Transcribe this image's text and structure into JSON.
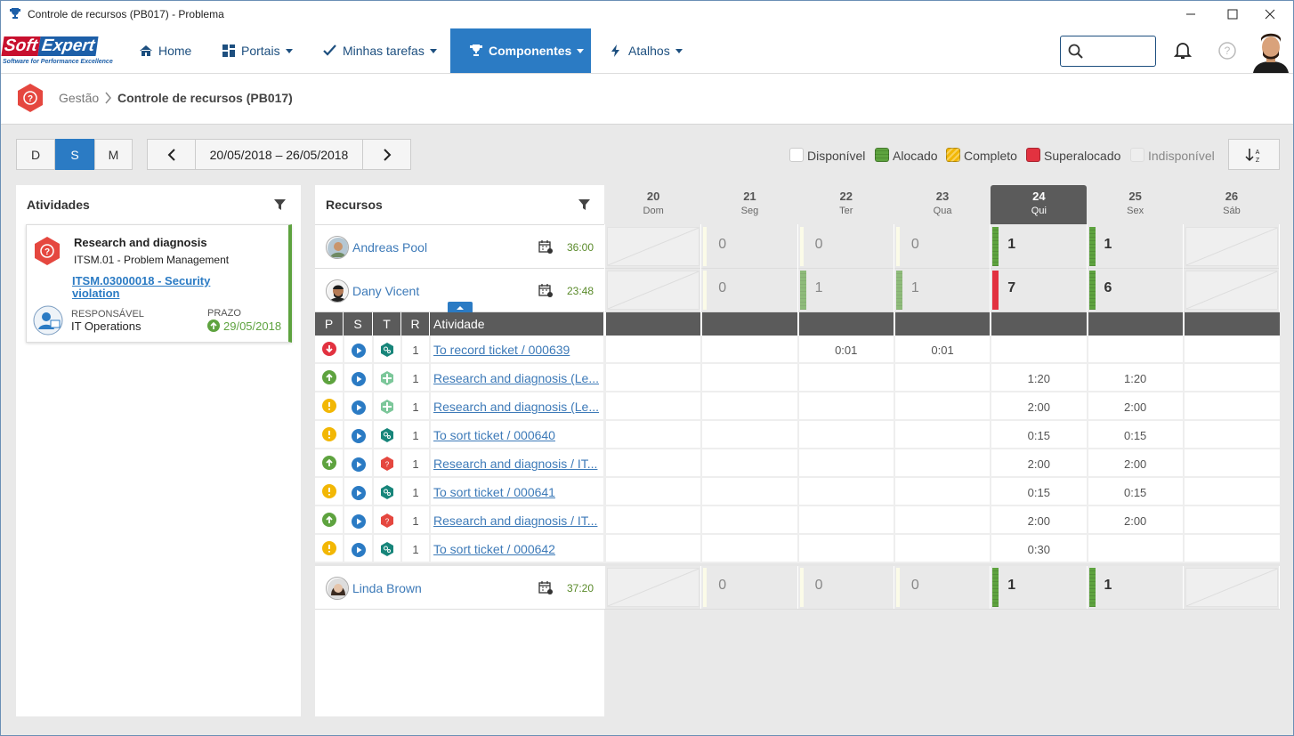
{
  "window": {
    "title": "Controle de recursos (PB017) - Problema"
  },
  "nav": {
    "logo": [
      "Soft",
      "Expert"
    ],
    "logo_tagline": "Software for Performance Excellence",
    "items": [
      "Home",
      "Portais",
      "Minhas tarefas",
      "Componentes",
      "Atalhos"
    ]
  },
  "breadcrumb": [
    "Gestão",
    "Controle de recursos (PB017)"
  ],
  "toolbar": {
    "views": [
      "D",
      "S",
      "M"
    ],
    "period": "20/05/2018 – 26/05/2018",
    "legend": [
      {
        "label": "Disponível",
        "color": "#ffffff"
      },
      {
        "label": "Alocado",
        "color": "#5ea33f"
      },
      {
        "label": "Completo",
        "color": "#f2b705"
      },
      {
        "label": "Superalocado",
        "color": "#e23240"
      },
      {
        "label": "Indisponível",
        "color": "#eeeeee"
      }
    ]
  },
  "activities": {
    "title": "Atividades",
    "card": {
      "name": "Research and diagnosis",
      "process": "ITSM.01 - Problem Management",
      "link": "ITSM.03000018 - Security violation",
      "responsible_label": "RESPONSÁVEL",
      "responsible": "IT Operations",
      "deadline_label": "PRAZO",
      "deadline": "29/05/2018"
    }
  },
  "resources": {
    "title": "Recursos",
    "days": [
      {
        "num": "20",
        "name": "Dom"
      },
      {
        "num": "21",
        "name": "Seg"
      },
      {
        "num": "22",
        "name": "Ter"
      },
      {
        "num": "23",
        "name": "Qua"
      },
      {
        "num": "24",
        "name": "Qui"
      },
      {
        "num": "25",
        "name": "Sex"
      },
      {
        "num": "26",
        "name": "Sáb"
      }
    ],
    "rows": [
      {
        "name": "Andreas Pool",
        "hours": "36:00",
        "values": [
          null,
          0,
          0,
          0,
          1,
          1,
          null
        ],
        "status": [
          "Indisponível",
          "Disponível",
          "Disponível",
          "Disponível",
          "Alocado",
          "Alocado",
          "Indisponível"
        ]
      },
      {
        "name": "Dany Vicent",
        "hours": "23:48",
        "values": [
          null,
          0,
          1,
          1,
          7,
          6,
          null
        ],
        "status": [
          "Indisponível",
          "Disponível",
          "Alocado",
          "Alocado",
          "Superalocado",
          "Alocado",
          "Indisponível"
        ]
      },
      {
        "name": "Linda Brown",
        "hours": "37:20",
        "values": [
          null,
          0,
          0,
          0,
          1,
          1,
          null
        ],
        "status": [
          "Indisponível",
          "Disponível",
          "Disponível",
          "Disponível",
          "Alocado",
          "Alocado",
          "Indisponível"
        ]
      }
    ],
    "activity_table": {
      "headers": [
        "P",
        "S",
        "T",
        "R",
        "Atividade"
      ],
      "rows": [
        {
          "r": 1,
          "name": "To record ticket / 000639",
          "times": [
            null,
            null,
            "0:01",
            "0:01",
            null,
            null,
            null
          ]
        },
        {
          "r": 1,
          "name": "Research and diagnosis (Le...",
          "times": [
            null,
            null,
            null,
            null,
            "1:20",
            "1:20",
            null
          ]
        },
        {
          "r": 1,
          "name": "Research and diagnosis (Le...",
          "times": [
            null,
            null,
            null,
            null,
            "2:00",
            "2:00",
            null
          ]
        },
        {
          "r": 1,
          "name": "To sort ticket / 000640",
          "times": [
            null,
            null,
            null,
            null,
            "0:15",
            "0:15",
            null
          ]
        },
        {
          "r": 1,
          "name": "Research and diagnosis / IT...",
          "times": [
            null,
            null,
            null,
            null,
            "2:00",
            "2:00",
            null
          ]
        },
        {
          "r": 1,
          "name": "To sort ticket / 000641",
          "times": [
            null,
            null,
            null,
            null,
            "0:15",
            "0:15",
            null
          ]
        },
        {
          "r": 1,
          "name": "Research and diagnosis / IT...",
          "times": [
            null,
            null,
            null,
            null,
            "2:00",
            "2:00",
            null
          ]
        },
        {
          "r": 1,
          "name": "To sort ticket / 000642",
          "times": [
            null,
            null,
            null,
            null,
            "0:30",
            null,
            null
          ]
        }
      ]
    }
  }
}
